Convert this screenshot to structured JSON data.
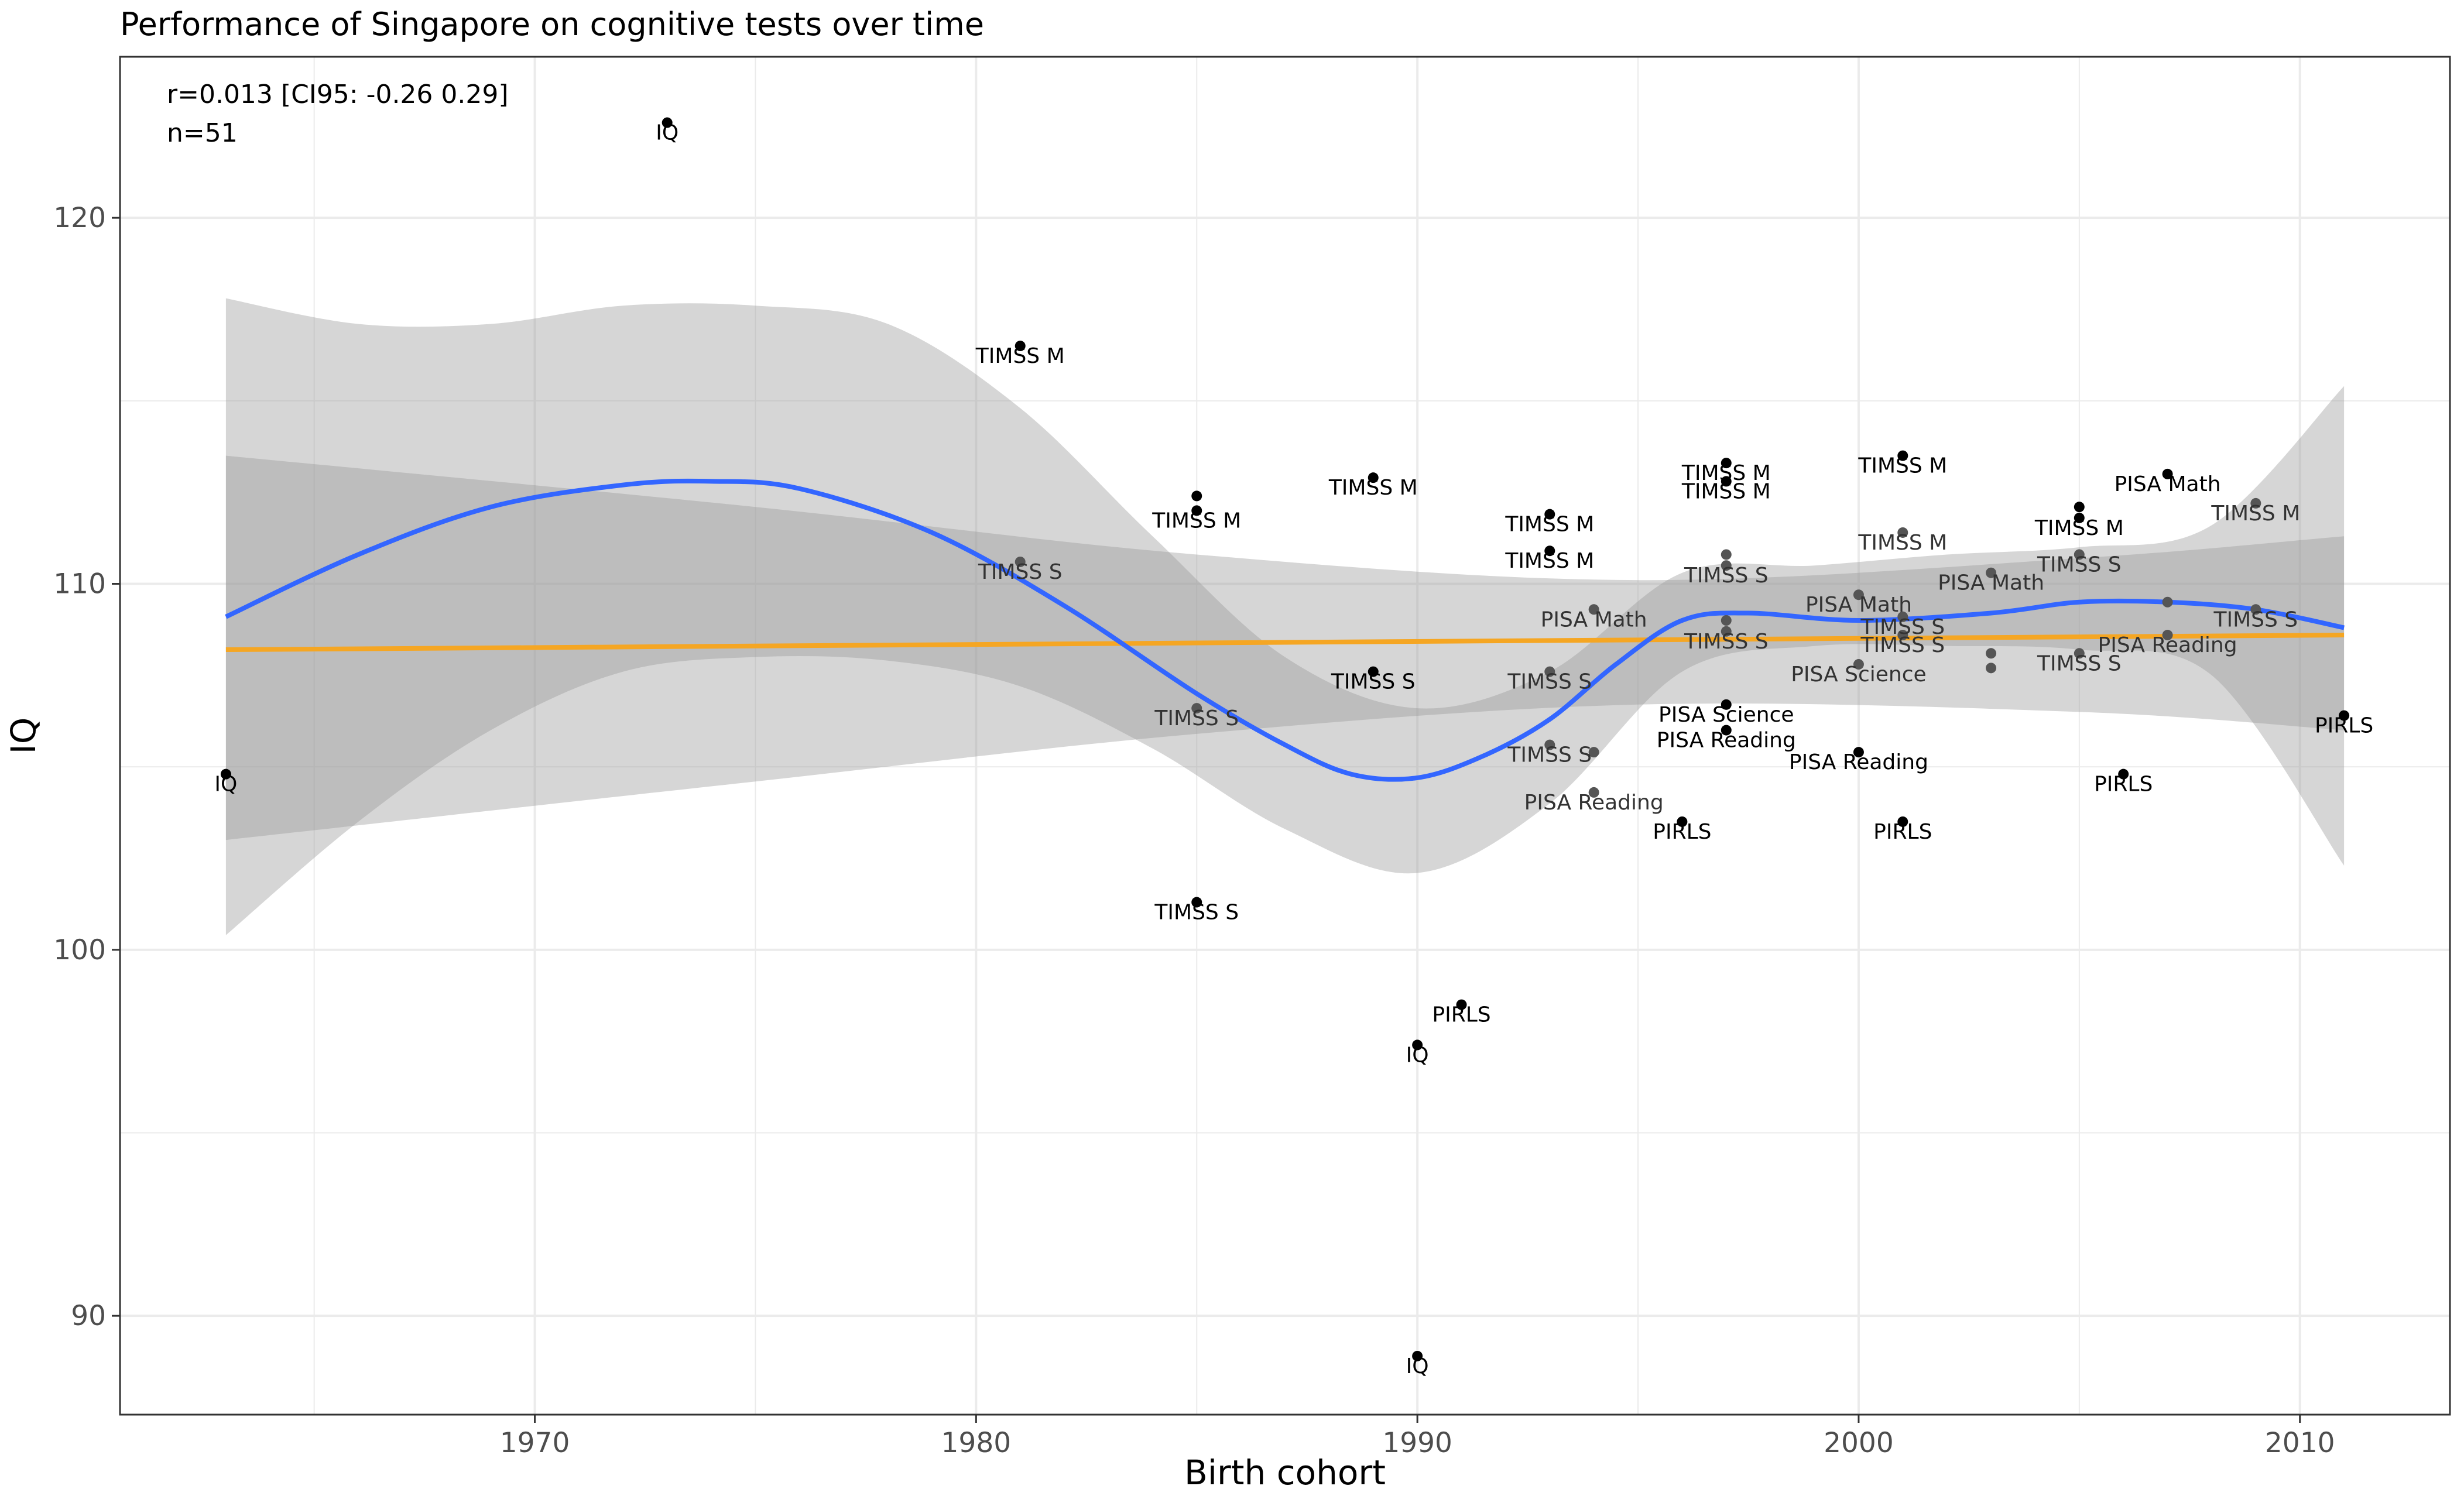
{
  "chart_data": {
    "type": "scatter",
    "title": "Performance of Singapore on cognitive tests over time",
    "xlabel": "Birth cohort",
    "ylabel": "IQ",
    "xlim": [
      1960.6,
      2013.4
    ],
    "ylim": [
      87.3,
      124.4
    ],
    "x_ticks": [
      1970,
      1980,
      1990,
      2000,
      2010
    ],
    "y_ticks": [
      90,
      100,
      110,
      120
    ],
    "grid": true,
    "annotations": [
      "r=0.013 [CI95: -0.26 0.29]",
      "n=51"
    ],
    "points": [
      {
        "x": 1963,
        "y": 104.8,
        "label": "IQ",
        "shade": "dark"
      },
      {
        "x": 1973,
        "y": 122.6,
        "label": "IQ",
        "shade": "dark"
      },
      {
        "x": 1981,
        "y": 116.5,
        "label": "TIMSS M",
        "shade": "dark"
      },
      {
        "x": 1981,
        "y": 110.6,
        "label": "TIMSS S",
        "shade": "grey"
      },
      {
        "x": 1985,
        "y": 112.4,
        "label": "",
        "shade": "dark"
      },
      {
        "x": 1985,
        "y": 112.0,
        "label": "TIMSS M",
        "shade": "dark"
      },
      {
        "x": 1985,
        "y": 106.6,
        "label": "TIMSS S",
        "shade": "grey"
      },
      {
        "x": 1985,
        "y": 101.3,
        "label": "TIMSS S",
        "shade": "dark"
      },
      {
        "x": 1989,
        "y": 112.9,
        "label": "TIMSS M",
        "shade": "dark"
      },
      {
        "x": 1989,
        "y": 107.6,
        "label": "TIMSS S",
        "shade": "dark"
      },
      {
        "x": 1990,
        "y": 97.4,
        "label": "IQ",
        "shade": "dark"
      },
      {
        "x": 1990,
        "y": 88.9,
        "label": "IQ",
        "shade": "dark"
      },
      {
        "x": 1991,
        "y": 98.5,
        "label": "PIRLS",
        "shade": "dark"
      },
      {
        "x": 1993,
        "y": 111.9,
        "label": "TIMSS M",
        "shade": "dark"
      },
      {
        "x": 1993,
        "y": 110.9,
        "label": "TIMSS M",
        "shade": "dark"
      },
      {
        "x": 1993,
        "y": 107.6,
        "label": "TIMSS S",
        "shade": "grey"
      },
      {
        "x": 1993,
        "y": 105.6,
        "label": "TIMSS S",
        "shade": "grey"
      },
      {
        "x": 1994,
        "y": 109.3,
        "label": "PISA Math",
        "shade": "grey"
      },
      {
        "x": 1994,
        "y": 105.4,
        "label": "",
        "shade": "grey"
      },
      {
        "x": 1994,
        "y": 104.3,
        "label": "PISA Reading",
        "shade": "grey"
      },
      {
        "x": 1996,
        "y": 103.5,
        "label": "PIRLS",
        "shade": "dark"
      },
      {
        "x": 1997,
        "y": 113.3,
        "label": "TIMSS M",
        "shade": "dark"
      },
      {
        "x": 1997,
        "y": 112.8,
        "label": "TIMSS M",
        "shade": "dark"
      },
      {
        "x": 1997,
        "y": 110.8,
        "label": "",
        "shade": "grey"
      },
      {
        "x": 1997,
        "y": 110.5,
        "label": "TIMSS S",
        "shade": "grey"
      },
      {
        "x": 1997,
        "y": 109.0,
        "label": "",
        "shade": "grey"
      },
      {
        "x": 1997,
        "y": 108.7,
        "label": "TIMSS S",
        "shade": "grey"
      },
      {
        "x": 1997,
        "y": 106.7,
        "label": "PISA Science",
        "shade": "dark"
      },
      {
        "x": 1997,
        "y": 106.0,
        "label": "PISA Reading",
        "shade": "dark"
      },
      {
        "x": 2000,
        "y": 109.7,
        "label": "PISA Math",
        "shade": "grey"
      },
      {
        "x": 2000,
        "y": 107.8,
        "label": "PISA Science",
        "shade": "grey"
      },
      {
        "x": 2000,
        "y": 105.4,
        "label": "PISA Reading",
        "shade": "dark"
      },
      {
        "x": 2001,
        "y": 113.5,
        "label": "TIMSS M",
        "shade": "dark"
      },
      {
        "x": 2001,
        "y": 111.4,
        "label": "TIMSS M",
        "shade": "grey"
      },
      {
        "x": 2001,
        "y": 109.1,
        "label": "TIMSS S",
        "shade": "grey"
      },
      {
        "x": 2001,
        "y": 108.6,
        "label": "TIMSS S",
        "shade": "grey"
      },
      {
        "x": 2001,
        "y": 103.5,
        "label": "PIRLS",
        "shade": "dark"
      },
      {
        "x": 2003,
        "y": 110.3,
        "label": "PISA Math",
        "shade": "grey"
      },
      {
        "x": 2003,
        "y": 108.1,
        "label": "",
        "shade": "grey"
      },
      {
        "x": 2003,
        "y": 107.7,
        "label": "",
        "shade": "grey"
      },
      {
        "x": 2005,
        "y": 112.1,
        "label": "",
        "shade": "dark"
      },
      {
        "x": 2005,
        "y": 111.8,
        "label": "TIMSS M",
        "shade": "dark"
      },
      {
        "x": 2005,
        "y": 110.8,
        "label": "TIMSS S",
        "shade": "grey"
      },
      {
        "x": 2005,
        "y": 108.1,
        "label": "TIMSS S",
        "shade": "grey"
      },
      {
        "x": 2006,
        "y": 104.8,
        "label": "PIRLS",
        "shade": "dark"
      },
      {
        "x": 2007,
        "y": 113.0,
        "label": "PISA Math",
        "shade": "dark"
      },
      {
        "x": 2007,
        "y": 109.5,
        "label": "",
        "shade": "grey"
      },
      {
        "x": 2007,
        "y": 108.6,
        "label": "PISA Reading",
        "shade": "grey"
      },
      {
        "x": 2009,
        "y": 112.2,
        "label": "TIMSS M",
        "shade": "grey"
      },
      {
        "x": 2009,
        "y": 109.3,
        "label": "TIMSS S",
        "shade": "grey"
      },
      {
        "x": 2011,
        "y": 106.4,
        "label": "PIRLS",
        "shade": "dark"
      }
    ],
    "linear_fit": {
      "color": "#f5a623",
      "x": [
        1963,
        2011
      ],
      "y": [
        108.2,
        108.6
      ]
    },
    "linear_band": {
      "x": [
        1963,
        1975,
        1985,
        1995,
        2005,
        2011
      ],
      "lower": [
        103.0,
        104.6,
        105.9,
        106.7,
        106.5,
        106.0
      ],
      "upper": [
        113.5,
        112.1,
        110.8,
        110.1,
        110.7,
        111.3
      ]
    },
    "smooth_fit": {
      "color": "#3366ff",
      "x": [
        1963,
        1966,
        1969,
        1972,
        1974,
        1976,
        1979,
        1982,
        1985,
        1987,
        1988.5,
        1990,
        1991.5,
        1993,
        1994.5,
        1996,
        1997.5,
        2000,
        2003,
        2005,
        2007,
        2009,
        2011
      ],
      "y": [
        109.1,
        110.8,
        112.1,
        112.7,
        112.8,
        112.6,
        111.4,
        109.4,
        107.0,
        105.6,
        104.8,
        104.7,
        105.3,
        106.3,
        107.8,
        109.0,
        109.2,
        109.0,
        109.2,
        109.5,
        109.5,
        109.3,
        108.8
      ]
    },
    "smooth_band": {
      "x": [
        1963,
        1966,
        1969,
        1972,
        1975,
        1978,
        1981,
        1984,
        1987,
        1990,
        1993,
        1996,
        1999,
        2002,
        2005,
        2008,
        2011
      ],
      "lower": [
        100.4,
        103.5,
        106.0,
        107.6,
        108.0,
        107.9,
        107.2,
        105.5,
        103.3,
        102.1,
        104.0,
        107.6,
        108.3,
        108.3,
        108.2,
        107.5,
        102.3
      ],
      "upper": [
        117.8,
        117.1,
        117.1,
        117.6,
        117.6,
        117.1,
        114.8,
        111.3,
        108.0,
        106.6,
        107.6,
        110.3,
        110.5,
        110.8,
        111.0,
        111.6,
        115.4
      ]
    }
  }
}
